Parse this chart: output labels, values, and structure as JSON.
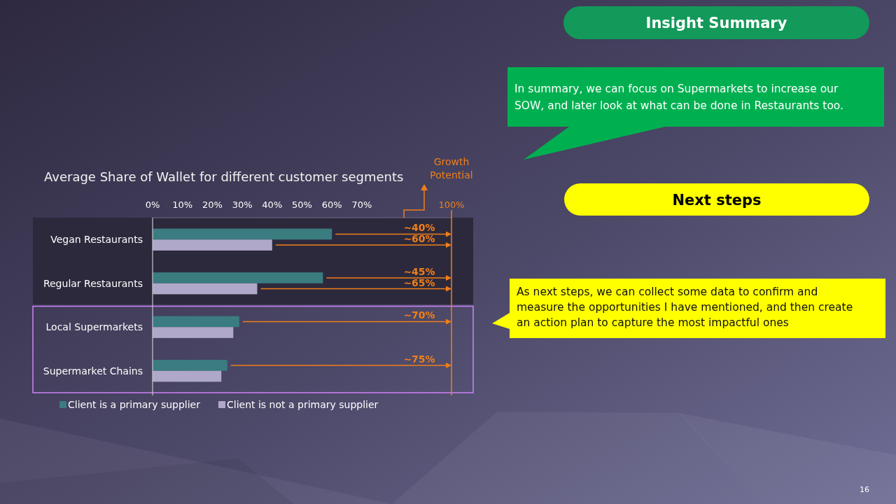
{
  "chart_data": {
    "type": "bar",
    "orientation": "horizontal",
    "title": "Average Share of Wallet for different customer segments",
    "categories": [
      "Vegan Restaurants",
      "Regular Restaurants",
      "Local Supermarkets",
      "Supermarket Chains"
    ],
    "series": [
      {
        "name": "Client is a primary supplier",
        "color": "#3a7c80",
        "values": [
          60,
          57,
          29,
          25
        ]
      },
      {
        "name": "Client is not a primary supplier",
        "color": "#b0a8c8",
        "values": [
          40,
          35,
          27,
          23
        ]
      }
    ],
    "xlim": [
      0,
      100
    ],
    "xticks": [
      {
        "value": 0,
        "label": "0%"
      },
      {
        "value": 10,
        "label": "10%"
      },
      {
        "value": 20,
        "label": "20%"
      },
      {
        "value": 30,
        "label": "30%"
      },
      {
        "value": 40,
        "label": "40%"
      },
      {
        "value": 50,
        "label": "50%"
      },
      {
        "value": 60,
        "label": "60%"
      },
      {
        "value": 70,
        "label": "70%"
      }
    ],
    "legend": "bottom",
    "ref_lines": [
      {
        "axis": "x",
        "value": 100,
        "label": "100%",
        "color": "#ef7f1a"
      }
    ],
    "bands": [
      {
        "axis": "y",
        "from": "Vegan Restaurants",
        "to": "Regular Restaurants",
        "color": "#2d293c"
      }
    ],
    "annotations": [
      "Growth Potential",
      "~40%",
      "~60%",
      "~45%",
      "~65%",
      "~70%",
      "~75%",
      "Insight Summary",
      "In summary, we can focus on Supermarkets to increase our SOW, and later look at what can be done in Restaurants too.",
      "Next steps",
      "As next steps, we can collect some data to confirm and measure the opportunities I have mentioned, and then create an action plan to capture the most impactful ones",
      "16"
    ]
  }
}
